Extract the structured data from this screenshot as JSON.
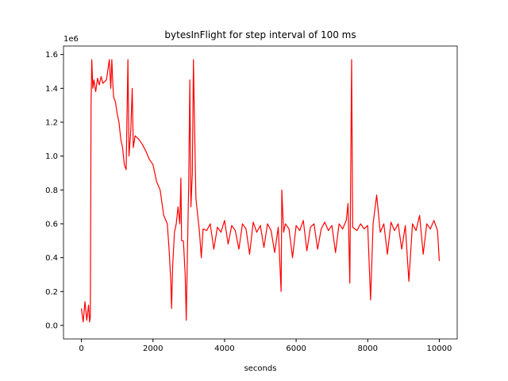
{
  "chart_data": {
    "type": "line",
    "title": "bytesInFlight for step interval of 100 ms",
    "x_label": "seconds",
    "y_offset_label": "1e6",
    "color": "#ff0000",
    "x": [
      0,
      50,
      100,
      150,
      200,
      230,
      250,
      270,
      290,
      320,
      350,
      400,
      450,
      500,
      550,
      600,
      700,
      780,
      820,
      850,
      880,
      900,
      950,
      1000,
      1050,
      1100,
      1150,
      1200,
      1250,
      1300,
      1330,
      1380,
      1420,
      1450,
      1500,
      1600,
      1700,
      1800,
      1900,
      2000,
      2100,
      2200,
      2300,
      2400,
      2450,
      2500,
      2520,
      2550,
      2600,
      2650,
      2700,
      2750,
      2780,
      2800,
      2850,
      2900,
      2930,
      2960,
      3000,
      3030,
      3060,
      3100,
      3130,
      3160,
      3200,
      3250,
      3300,
      3350,
      3400,
      3500,
      3600,
      3700,
      3800,
      3900,
      4000,
      4100,
      4200,
      4300,
      4400,
      4500,
      4600,
      4700,
      4800,
      4900,
      5000,
      5100,
      5200,
      5300,
      5400,
      5500,
      5580,
      5600,
      5650,
      5700,
      5800,
      5900,
      6000,
      6100,
      6200,
      6300,
      6400,
      6500,
      6600,
      6700,
      6800,
      6900,
      7000,
      7100,
      7200,
      7300,
      7400,
      7450,
      7500,
      7550,
      7580,
      7700,
      7800,
      7900,
      8000,
      8080,
      8150,
      8250,
      8350,
      8450,
      8550,
      8650,
      8750,
      8850,
      8950,
      9050,
      9150,
      9250,
      9350,
      9450,
      9550,
      9650,
      9750,
      9850,
      9950,
      10000
    ],
    "values": [
      100000,
      20000,
      140000,
      30000,
      120000,
      20000,
      50000,
      1300000,
      1570000,
      1400000,
      1450000,
      1380000,
      1460000,
      1420000,
      1470000,
      1430000,
      1450000,
      1570000,
      1400000,
      1570000,
      1420000,
      1350000,
      1320000,
      1250000,
      1200000,
      1100000,
      1050000,
      950000,
      920000,
      1570000,
      1000000,
      1150000,
      1400000,
      1050000,
      1120000,
      1100000,
      1070000,
      1030000,
      980000,
      950000,
      850000,
      800000,
      650000,
      600000,
      450000,
      250000,
      100000,
      350000,
      550000,
      600000,
      700000,
      600000,
      870000,
      500000,
      500000,
      300000,
      30000,
      400000,
      850000,
      1450000,
      700000,
      900000,
      1570000,
      1200000,
      750000,
      650000,
      550000,
      400000,
      570000,
      560000,
      600000,
      450000,
      580000,
      550000,
      620000,
      480000,
      590000,
      560000,
      450000,
      600000,
      570000,
      420000,
      610000,
      550000,
      590000,
      460000,
      600000,
      560000,
      430000,
      580000,
      200000,
      800000,
      550000,
      600000,
      570000,
      400000,
      590000,
      560000,
      620000,
      440000,
      580000,
      600000,
      450000,
      570000,
      610000,
      560000,
      590000,
      430000,
      600000,
      570000,
      620000,
      720000,
      250000,
      1570000,
      580000,
      560000,
      600000,
      570000,
      590000,
      150000,
      600000,
      770000,
      550000,
      600000,
      420000,
      610000,
      560000,
      600000,
      450000,
      590000,
      260000,
      600000,
      560000,
      650000,
      420000,
      600000,
      570000,
      620000,
      560000,
      380000
    ],
    "xlim": [
      -500,
      10500
    ],
    "xticks": [
      0,
      2000,
      4000,
      6000,
      8000,
      10000
    ],
    "ylim": [
      -80000,
      1650000
    ],
    "yticks": [
      {
        "value": 0,
        "label": "0.0"
      },
      {
        "value": 200000,
        "label": "0.2"
      },
      {
        "value": 400000,
        "label": "0.4"
      },
      {
        "value": 600000,
        "label": "0.6"
      },
      {
        "value": 800000,
        "label": "0.8"
      },
      {
        "value": 1000000,
        "label": "1.0"
      },
      {
        "value": 1200000,
        "label": "1.2"
      },
      {
        "value": 1400000,
        "label": "1.4"
      },
      {
        "value": 1600000,
        "label": "1.6"
      }
    ]
  }
}
